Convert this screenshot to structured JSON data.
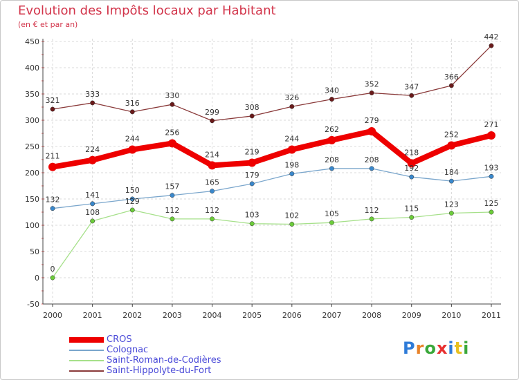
{
  "header": {
    "title": "Evolution des Impôts locaux par Habitant",
    "subtitle": "(en € et par an)"
  },
  "logo": {
    "text": "Proxiti",
    "letters": [
      "P",
      "r",
      "o",
      "x",
      "i",
      "t",
      "i"
    ],
    "colors": [
      "#2e7bd8",
      "#e8832a",
      "#3aa83a",
      "#e83030",
      "#2e7bd8",
      "#e8c020",
      "#3aa83a"
    ]
  },
  "chart_data": {
    "type": "line",
    "title": "Evolution des Impôts locaux par Habitant",
    "subtitle": "(en € et par an)",
    "xlabel": "",
    "ylabel": "",
    "x": [
      "2000",
      "2001",
      "2002",
      "2003",
      "2004",
      "2005",
      "2006",
      "2007",
      "2008",
      "2009",
      "2010",
      "2011"
    ],
    "ylim": [
      -50,
      450
    ],
    "yticks": [
      -50,
      0,
      50,
      100,
      150,
      200,
      250,
      300,
      350,
      400,
      450
    ],
    "ytick_labels": [
      "-50",
      "0",
      "50",
      "100",
      "150",
      "200",
      "250",
      "300",
      "350",
      "400",
      "450"
    ],
    "grid": true,
    "legend_position": "bottom-left",
    "series": [
      {
        "name": "CROS",
        "values": [
          211,
          224,
          244,
          256,
          214,
          219,
          244,
          262,
          279,
          218,
          252,
          271
        ],
        "labels": [
          "211",
          "224",
          "244",
          "256",
          "214",
          "219",
          "244",
          "262",
          "279",
          "218",
          "252",
          "271"
        ],
        "color": "#ee0000",
        "marker": "#ee0000",
        "thick": true
      },
      {
        "name": "Colognac",
        "values": [
          132,
          141,
          150,
          157,
          165,
          179,
          198,
          208,
          208,
          192,
          184,
          193
        ],
        "labels": [
          "132",
          "141",
          "150",
          "157",
          "165",
          "179",
          "198",
          "208",
          "208",
          "192",
          "184",
          "193"
        ],
        "color": "#7aa6cc",
        "marker": "#3a88cc",
        "thick": false
      },
      {
        "name": "Saint-Roman-de-Codières",
        "values": [
          0,
          108,
          129,
          112,
          112,
          103,
          102,
          105,
          112,
          115,
          123,
          125
        ],
        "labels": [
          "0",
          "108",
          "129",
          "112",
          "112",
          "103",
          "102",
          "105",
          "112",
          "115",
          "123",
          "125"
        ],
        "color": "#a6e08a",
        "marker": "#6ccc3a",
        "thick": false
      },
      {
        "name": "Saint-Hippolyte-du-Fort",
        "values": [
          321,
          333,
          316,
          330,
          299,
          308,
          326,
          340,
          352,
          347,
          366,
          442
        ],
        "labels": [
          "321",
          "333",
          "316",
          "330",
          "299",
          "308",
          "326",
          "340",
          "352",
          "347",
          "366",
          "442"
        ],
        "color": "#8a3a3a",
        "marker": "#6a1a1a",
        "thick": false
      }
    ]
  }
}
